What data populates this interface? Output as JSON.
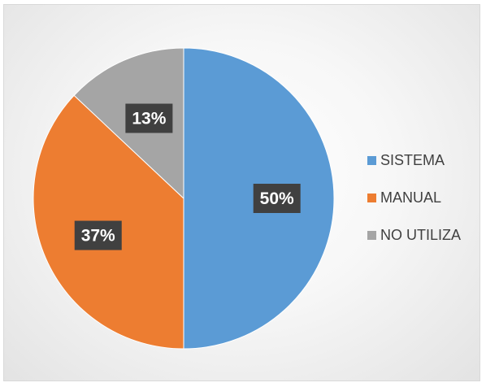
{
  "chart_data": {
    "type": "pie",
    "categories": [
      "SISTEMA",
      "MANUAL",
      "NO UTILIZA"
    ],
    "values": [
      50,
      37,
      13
    ],
    "data_labels": [
      "50%",
      "37%",
      "13%"
    ],
    "colors": [
      "#5b9bd5",
      "#ed7d31",
      "#a5a5a5"
    ],
    "title": "",
    "legend_position": "right",
    "start_angle": "12 o'clock, clockwise"
  }
}
